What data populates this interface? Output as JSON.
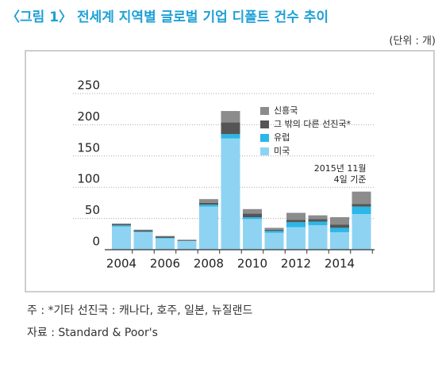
{
  "chart_data": {
    "type": "stacked_bar",
    "title": "〈그림 1〉 전세계 지역별 글로벌 기업 디폴트 건수 추이",
    "unit": "(단위 : 개)",
    "categories": [
      "2004",
      null,
      "2006",
      null,
      "2008",
      null,
      "2010",
      null,
      "2012",
      null,
      "2014",
      null
    ],
    "series": [
      {
        "name": "미국",
        "color": "#8fd3f2",
        "values": [
          37,
          28,
          18,
          14,
          69,
          178,
          49,
          27,
          36,
          39,
          28,
          57
        ]
      },
      {
        "name": "유럽",
        "color": "#2bb7e8",
        "values": [
          2,
          1,
          1,
          0,
          3,
          7,
          3,
          3,
          8,
          6,
          7,
          12
        ]
      },
      {
        "name": "그 밖의 다른 선진국*",
        "color": "#555555",
        "values": [
          2,
          2,
          2,
          1,
          3,
          19,
          6,
          2,
          4,
          4,
          5,
          4
        ]
      },
      {
        "name": "신흥국",
        "color": "#8c8c8c",
        "values": [
          1,
          1,
          1,
          1,
          6,
          18,
          7,
          3,
          11,
          6,
          12,
          20
        ]
      }
    ],
    "ylim": [
      0,
      250
    ],
    "yticks": [
      0,
      50,
      100,
      150,
      200,
      250
    ],
    "grid": true,
    "annotation": [
      "2015년 11월",
      "4일 기준"
    ],
    "notes": [
      "주 : *기타 선진국 : 캐나다, 호주, 일본, 뉴질랜드",
      "자료 : Standard & Poor's"
    ]
  }
}
